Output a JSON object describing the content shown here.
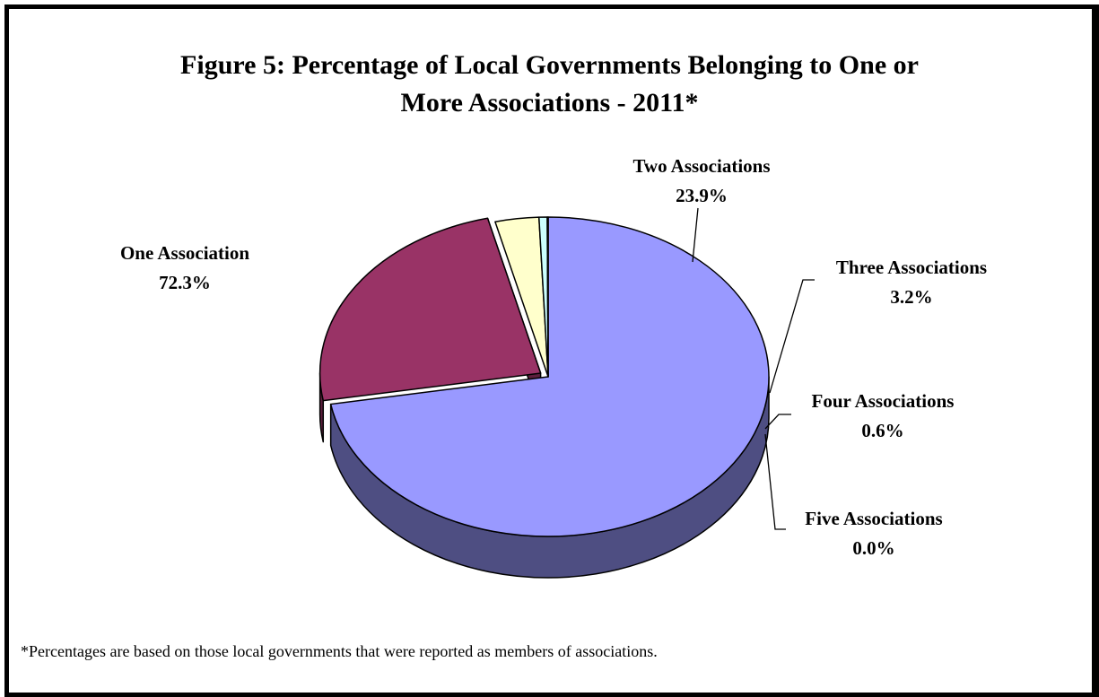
{
  "chart_data": {
    "type": "pie",
    "title_lines": [
      "Figure 5:  Percentage of Local Governments Belonging to One or",
      "More Associations - 2011*"
    ],
    "slices": [
      {
        "name": "One Association",
        "value": 72.3,
        "label": "72.3%",
        "color": "#9999FF",
        "side_color": "#4E4E82"
      },
      {
        "name": "Two Associations",
        "value": 23.9,
        "label": "23.9%",
        "color": "#993366",
        "side_color": "#5C1F3D"
      },
      {
        "name": "Three Associations",
        "value": 3.2,
        "label": "3.2%",
        "color": "#FFFFCC",
        "side_color": "#B8B88F"
      },
      {
        "name": "Four Associations",
        "value": 0.6,
        "label": "0.6%",
        "color": "#CCFFFF",
        "side_color": "#8FB8B8"
      },
      {
        "name": "Five Associations",
        "value": 0.0,
        "label": "0.0%",
        "color": "#660066",
        "side_color": "#3D003D"
      }
    ],
    "exploded_slice": "Two Associations",
    "three_d": true
  },
  "footnote": "*Percentages are based on those local governments that were reported as members of associations."
}
